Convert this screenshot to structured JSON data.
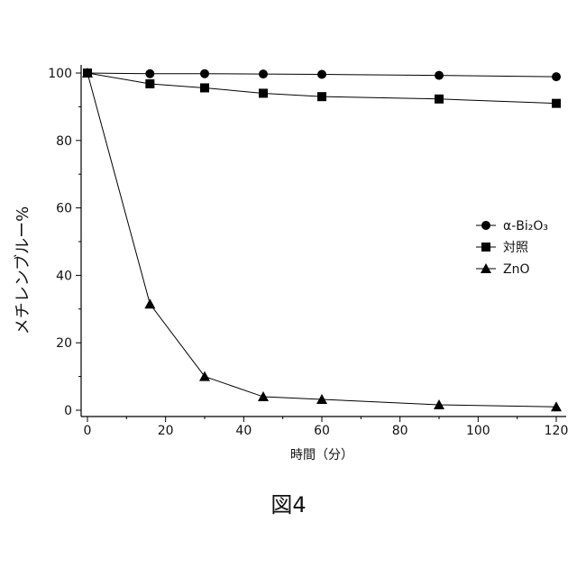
{
  "chart_data": {
    "type": "line",
    "xlabel": "時間（分）",
    "ylabel": "メチレンブルー%",
    "xlim": [
      0,
      120
    ],
    "ylim": [
      0,
      100
    ],
    "xticks": [
      0,
      20,
      40,
      60,
      80,
      100,
      120
    ],
    "yticks": [
      0,
      20,
      40,
      60,
      80,
      100
    ],
    "grid": false,
    "legend_position": "right",
    "series": [
      {
        "name": "α-Bi₂O₃",
        "marker": "circle",
        "color": "#000000",
        "points": [
          [
            0,
            100
          ],
          [
            16,
            99.8
          ],
          [
            30,
            99.8
          ],
          [
            45,
            99.7
          ],
          [
            60,
            99.6
          ],
          [
            90,
            99.3
          ],
          [
            120,
            98.9
          ]
        ]
      },
      {
        "name": "対照",
        "marker": "square",
        "color": "#000000",
        "points": [
          [
            0,
            100
          ],
          [
            16,
            96.8
          ],
          [
            30,
            95.6
          ],
          [
            45,
            94
          ],
          [
            60,
            93
          ],
          [
            90,
            92.3
          ],
          [
            120,
            91
          ]
        ]
      },
      {
        "name": "ZnO",
        "marker": "triangle",
        "color": "#000000",
        "points": [
          [
            0,
            100
          ],
          [
            16,
            31.5
          ],
          [
            30,
            10
          ],
          [
            45,
            4
          ],
          [
            60,
            3.2
          ],
          [
            90,
            1.6
          ],
          [
            120,
            1
          ]
        ]
      }
    ]
  },
  "caption": "図4"
}
